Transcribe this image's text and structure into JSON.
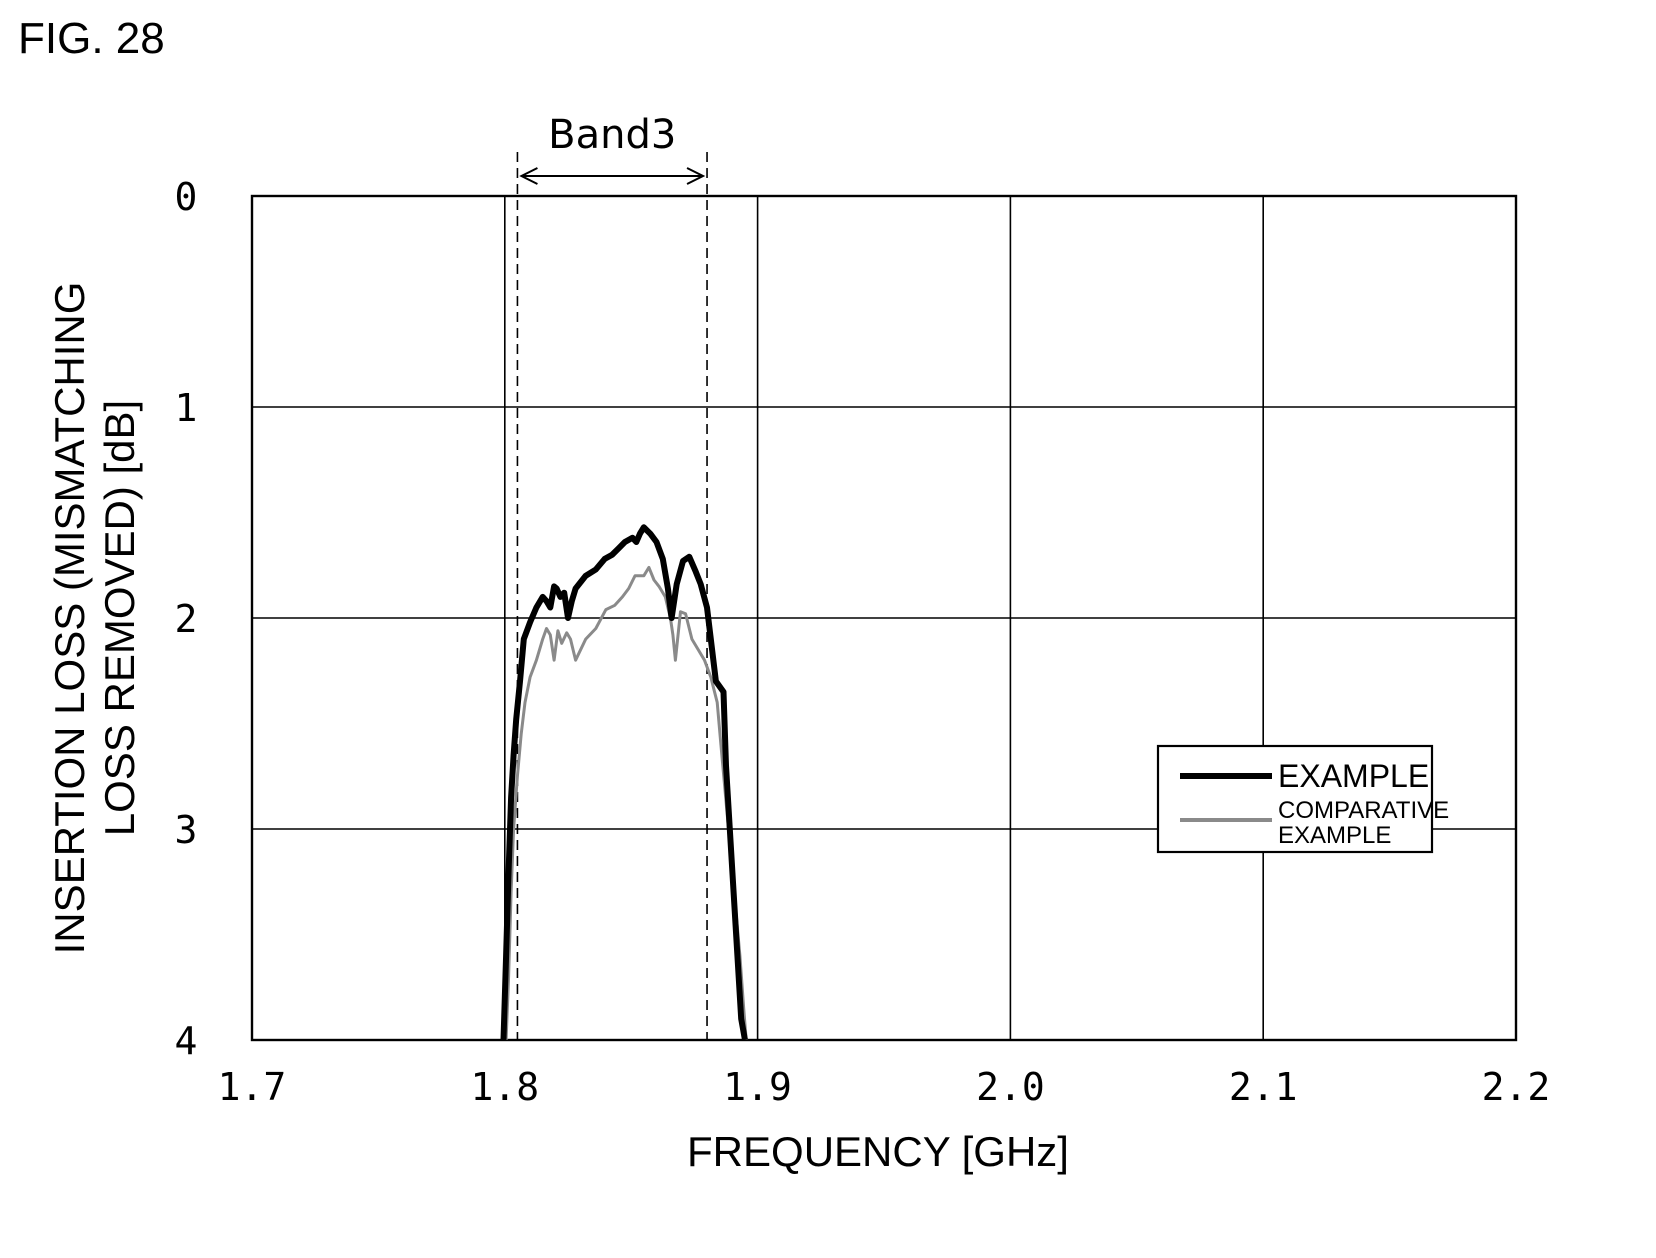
{
  "figure_label": "FIG. 28",
  "chart_data": {
    "type": "line",
    "xlabel": "FREQUENCY [GHz]",
    "ylabel_lines": [
      "INSERTION LOSS (MISMATCHING",
      "LOSS REMOVED) [dB]"
    ],
    "xlim": [
      1.7,
      2.2
    ],
    "ylim": [
      0,
      4
    ],
    "y_inverted": true,
    "x_ticks": [
      "1.7",
      "1.8",
      "1.9",
      "2.0",
      "2.1",
      "2.2"
    ],
    "y_ticks": [
      "0",
      "1",
      "2",
      "3",
      "4"
    ],
    "grid": true,
    "band": {
      "label": "Band3",
      "start": 1.805,
      "end": 1.88
    },
    "legend": {
      "placement": "right",
      "entries": [
        "EXAMPLE",
        "COMPARATIVE EXAMPLE"
      ]
    },
    "series": [
      {
        "name": "EXAMPLE",
        "color": "#000000",
        "x": [
          1.7995,
          1.8005,
          1.8015,
          1.8025,
          1.8035,
          1.8045,
          1.806,
          1.8075,
          1.81,
          1.8125,
          1.815,
          1.8165,
          1.818,
          1.8195,
          1.8205,
          1.822,
          1.8235,
          1.825,
          1.8265,
          1.828,
          1.832,
          1.836,
          1.8395,
          1.8425,
          1.845,
          1.8475,
          1.8505,
          1.852,
          1.8535,
          1.855,
          1.8575,
          1.86,
          1.8625,
          1.8645,
          1.866,
          1.868,
          1.8705,
          1.873,
          1.8755,
          1.8775,
          1.88,
          1.8835,
          1.8865,
          1.8875,
          1.889,
          1.8905,
          1.892,
          1.8935,
          1.895
        ],
        "y": [
          4.0,
          3.6,
          3.2,
          2.85,
          2.65,
          2.48,
          2.3,
          2.1,
          2.02,
          1.95,
          1.9,
          1.92,
          1.95,
          1.85,
          1.86,
          1.9,
          1.88,
          2.0,
          1.92,
          1.86,
          1.8,
          1.77,
          1.72,
          1.7,
          1.67,
          1.64,
          1.62,
          1.64,
          1.6,
          1.57,
          1.6,
          1.64,
          1.72,
          1.86,
          2.0,
          1.84,
          1.73,
          1.71,
          1.78,
          1.84,
          1.95,
          2.3,
          2.35,
          2.7,
          3.0,
          3.3,
          3.6,
          3.9,
          4.0
        ],
        "width": 6
      },
      {
        "name": "COMPARATIVE EXAMPLE",
        "color": "#8a8a8a",
        "x": [
          1.8005,
          1.8015,
          1.8025,
          1.8035,
          1.805,
          1.8065,
          1.808,
          1.81,
          1.8125,
          1.815,
          1.8165,
          1.818,
          1.8195,
          1.821,
          1.8225,
          1.8245,
          1.826,
          1.828,
          1.832,
          1.836,
          1.84,
          1.8435,
          1.8465,
          1.849,
          1.8515,
          1.8535,
          1.855,
          1.857,
          1.859,
          1.861,
          1.8635,
          1.8655,
          1.8665,
          1.8675,
          1.8695,
          1.8715,
          1.874,
          1.8765,
          1.879,
          1.8815,
          1.884,
          1.8855,
          1.887,
          1.8885,
          1.89,
          1.8915,
          1.893,
          1.8945,
          1.8955
        ],
        "y": [
          4.0,
          3.7,
          3.3,
          3.0,
          2.75,
          2.55,
          2.4,
          2.28,
          2.2,
          2.1,
          2.05,
          2.08,
          2.2,
          2.06,
          2.12,
          2.07,
          2.1,
          2.2,
          2.1,
          2.05,
          1.96,
          1.94,
          1.9,
          1.86,
          1.8,
          1.8,
          1.8,
          1.76,
          1.82,
          1.85,
          1.9,
          2.0,
          2.08,
          2.2,
          1.97,
          1.98,
          2.1,
          2.15,
          2.2,
          2.28,
          2.4,
          2.6,
          2.8,
          3.0,
          3.2,
          3.4,
          3.6,
          3.85,
          4.0
        ],
        "width": 3
      }
    ]
  }
}
